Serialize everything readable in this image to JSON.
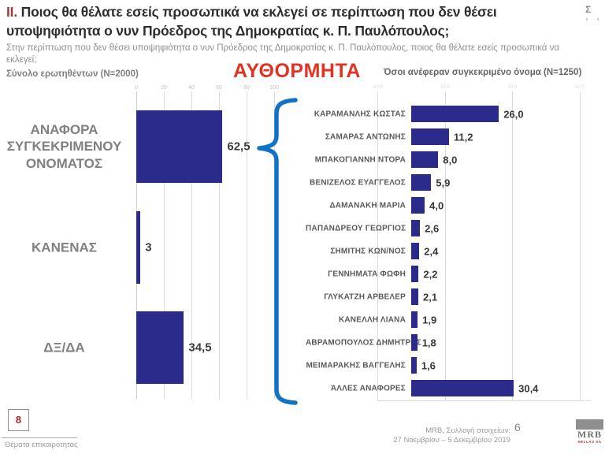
{
  "slide": {
    "section_marker": "II.",
    "title": "Ποιος θα θέλατε εσείς προσωπικά να εκλεγεί σε περίπτωση που δεν θέσει υποψηφιότητα ο νυν Πρόεδρος της Δημοκρατίας κ. Π. Παυλόπουλος;",
    "subtitle": "Στην περίπτωση που δεν θέσει υποψηφιότητα ο νυν Πρόεδρος της Δημοκρατίας κ. Π. Παυλόπουλος, ποιος θα θέλατε εσείς προσωπικά να εκλεγεί;",
    "method_label": "ΑΥΘΟΡΜΗΤΑ",
    "corner_mark": "Σ"
  },
  "chart_data": [
    {
      "type": "bar",
      "orientation": "horizontal",
      "title": "Σύνολο ερωτηθέντων (N=2000)",
      "categories": [
        "ΑΝΑΦΟΡΑ ΣΥΓΚΕΚΡΙΜΕΝΟΥ ΟΝΟΜΑΤΟΣ",
        "ΚΑΝΕΝΑΣ",
        "ΔΞ/ΔΑ"
      ],
      "values": [
        62.5,
        3,
        34.5
      ],
      "value_labels": [
        "62,5",
        "3",
        "34,5"
      ],
      "xlim": [
        0,
        100
      ],
      "x_ticks": [
        "0",
        "20",
        "40",
        "60",
        "80",
        "100"
      ],
      "grid": true,
      "legend": false,
      "bar_color": "#2a2b8a"
    },
    {
      "type": "bar",
      "orientation": "horizontal",
      "title": "Όσοι ανέφεραν συγκεκριμένο όνομα (N=1250)",
      "categories": [
        "ΚΑΡΑΜΑΝΛΗΣ ΚΩΣΤΑΣ",
        "ΣΑΜΑΡΑΣ ΑΝΤΩΝΗΣ",
        "ΜΠΑΚΟΓΙΑΝΝΗ ΝΤΟΡΑ",
        "ΒΕΝΙΖΕΛΟΣ ΕΥΑΓΓΕΛΟΣ",
        "ΔΑΜΑΝΑΚΗ ΜΑΡΙΑ",
        "ΠΑΠΑΝΔΡΕΟΥ ΓΕΩΡΓΙΟΣ",
        "ΣΗΜΙΤΗΣ ΚΩΝ/ΝΟΣ",
        "ΓΕΝΝΗΜΑΤΑ ΦΩΦΗ",
        "ΓΛΥΚΑΤΖΗ ΑΡΒΕΛΕΡ",
        "ΚΑΝΕΛΛΗ ΛΙΑΝΑ",
        "ΑΒΡΑΜΟΠΟΥΛΟΣ ΔΗΜΗΤΡΗΣ",
        "ΜΕΙΜΑΡΑΚΗΣ ΒΑΓΓΕΛΗΣ",
        "ΆΛΛΕΣ ΑΝΑΦΟΡΕΣ"
      ],
      "values": [
        26.0,
        11.2,
        8.0,
        5.9,
        4.0,
        2.6,
        2.4,
        2.2,
        2.1,
        1.9,
        1.8,
        1.6,
        30.4
      ],
      "value_labels": [
        "26,0",
        "11,2",
        "8,0",
        "5,9",
        "4,0",
        "2,6",
        "2,4",
        "2,2",
        "2,1",
        "1,9",
        "1,8",
        "1,6",
        "30,4"
      ],
      "xlim": [
        -10,
        50
      ],
      "x_ticks": [
        "-10,0",
        "10,0",
        "30,0",
        "50,0"
      ],
      "grid": true,
      "legend": false,
      "bar_color": "#2a2b8a"
    }
  ],
  "colors": {
    "bar": "#2a2b8a",
    "brace": "#1273c4",
    "accent_red": "#e03322",
    "title_red": "#a03b38"
  },
  "footer": {
    "page_box_number": "8",
    "section_footer": "Θέματα επικαιρότητας",
    "source_line1": "MRB, Συλλογή στοιχείων:",
    "source_line2": "27 Νοεμβρίου – 5 Δεκεμβρίου 2019",
    "page_number": "6",
    "logo_text": "MRB",
    "logo_subtext": "HELLAS SA"
  }
}
